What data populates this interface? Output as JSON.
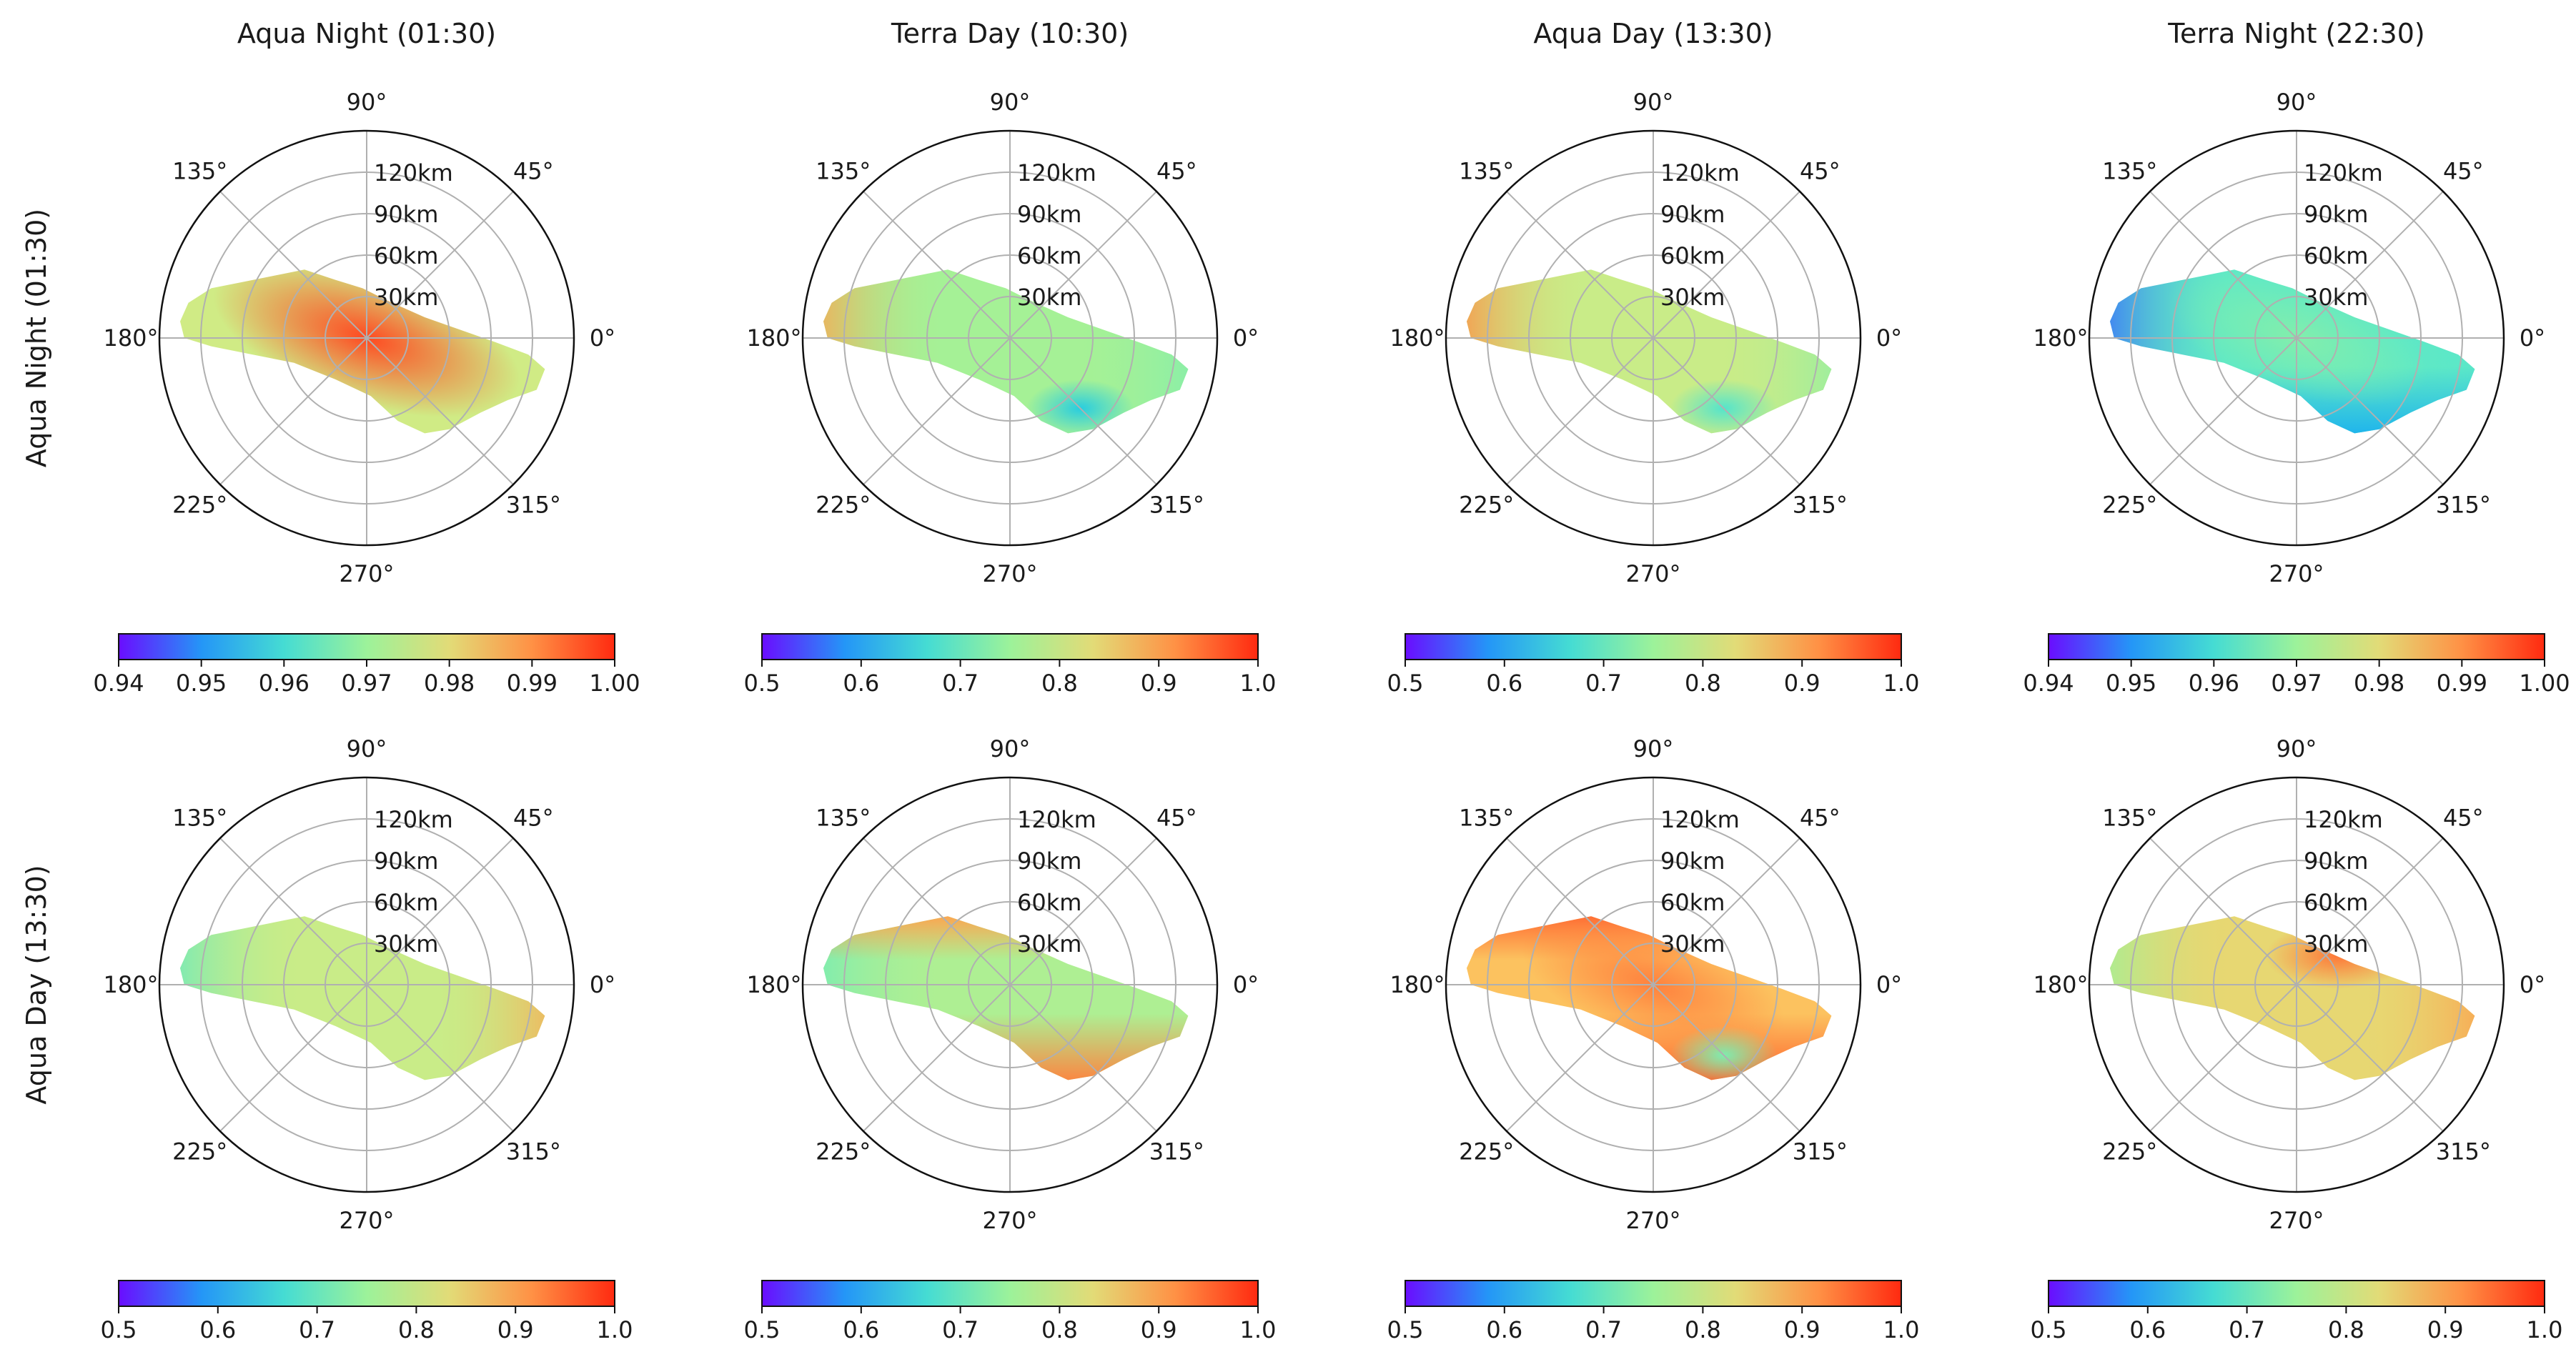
{
  "figure": {
    "column_titles": [
      "Aqua Night (01:30)",
      "Terra Day (10:30)",
      "Aqua Day (13:30)",
      "Terra Night (22:30)"
    ],
    "row_labels": [
      "Aqua Night (01:30)",
      "Aqua Day (13:30)"
    ]
  },
  "colors": {
    "colormap": [
      "#6a0dff",
      "#2b7fff",
      "#17c4e8",
      "#5ce8c8",
      "#9cf29a",
      "#d4ea84",
      "#ffbe5c",
      "#ff7a3a",
      "#ff2a10"
    ],
    "axis_line": "#111111",
    "grid": "#b0b0b0"
  },
  "chart_data": [
    {
      "type": "polar-heatmap",
      "row": 0,
      "col": 0,
      "angle_ticks": [
        "0°",
        "45°",
        "90°",
        "135°",
        "180°",
        "225°",
        "270°",
        "315°"
      ],
      "radial_ticks": [
        "30km",
        "60km",
        "90km",
        "120km"
      ],
      "rlim": [
        0,
        150
      ],
      "colorbar": {
        "vmin": 0.94,
        "vmax": 1.0,
        "ticks": [
          "0.94",
          "0.95",
          "0.96",
          "0.97",
          "0.98",
          "0.99",
          "1.00"
        ]
      },
      "pattern": {
        "base": 0.977,
        "center": 0.997,
        "center_falloff": 0.35,
        "west": 0.0,
        "east": 0.0,
        "north_edge": 0.0,
        "south_edge": 0.0,
        "ne_blob": 0.0,
        "se_patch": 0.0
      }
    },
    {
      "type": "polar-heatmap",
      "row": 0,
      "col": 1,
      "angle_ticks": [
        "0°",
        "45°",
        "90°",
        "135°",
        "180°",
        "225°",
        "270°",
        "315°"
      ],
      "radial_ticks": [
        "30km",
        "60km",
        "90km",
        "120km"
      ],
      "rlim": [
        0,
        150
      ],
      "colorbar": {
        "vmin": 0.5,
        "vmax": 1.0,
        "ticks": [
          "0.5",
          "0.6",
          "0.7",
          "0.8",
          "0.9",
          "1.0"
        ]
      },
      "pattern": {
        "base": 0.76,
        "center": 0.0,
        "center_falloff": 0.3,
        "west": 0.9,
        "east": 0.72,
        "north_edge": 0.0,
        "south_edge": 0.0,
        "ne_blob": 0.0,
        "se_patch": 0.64
      }
    },
    {
      "type": "polar-heatmap",
      "row": 0,
      "col": 2,
      "angle_ticks": [
        "0°",
        "45°",
        "90°",
        "135°",
        "180°",
        "225°",
        "270°",
        "315°"
      ],
      "radial_ticks": [
        "30km",
        "60km",
        "90km",
        "120km"
      ],
      "rlim": [
        0,
        150
      ],
      "colorbar": {
        "vmin": 0.5,
        "vmax": 1.0,
        "ticks": [
          "0.5",
          "0.6",
          "0.7",
          "0.8",
          "0.9",
          "1.0"
        ]
      },
      "pattern": {
        "base": 0.8,
        "center": 0.0,
        "center_falloff": 0.3,
        "west": 0.92,
        "east": 0.73,
        "north_edge": 0.0,
        "south_edge": 0.0,
        "ne_blob": 0.0,
        "se_patch": 0.68
      }
    },
    {
      "type": "polar-heatmap",
      "row": 0,
      "col": 3,
      "angle_ticks": [
        "0°",
        "45°",
        "90°",
        "135°",
        "180°",
        "225°",
        "270°",
        "315°"
      ],
      "radial_ticks": [
        "30km",
        "60km",
        "90km",
        "120km"
      ],
      "rlim": [
        0,
        150
      ],
      "colorbar": {
        "vmin": 0.94,
        "vmax": 1.0,
        "ticks": [
          "0.94",
          "0.95",
          "0.96",
          "0.97",
          "0.98",
          "0.99",
          "1.00"
        ]
      },
      "pattern": {
        "base": 0.963,
        "center": 0.967,
        "center_falloff": 0.3,
        "west": 0.946,
        "east": 0.962,
        "north_edge": 0.0,
        "south_edge": 0.953,
        "ne_blob": 0.0,
        "se_patch": 0.0
      }
    },
    {
      "type": "polar-heatmap",
      "row": 1,
      "col": 0,
      "angle_ticks": [
        "0°",
        "45°",
        "90°",
        "135°",
        "180°",
        "225°",
        "270°",
        "315°"
      ],
      "radial_ticks": [
        "30km",
        "60km",
        "90km",
        "120km"
      ],
      "rlim": [
        0,
        150
      ],
      "colorbar": {
        "vmin": 0.5,
        "vmax": 1.0,
        "ticks": [
          "0.5",
          "0.6",
          "0.7",
          "0.8",
          "0.9",
          "1.0"
        ]
      },
      "pattern": {
        "base": 0.8,
        "center": 0.0,
        "center_falloff": 0.3,
        "west": 0.7,
        "east": 0.9,
        "north_edge": 0.0,
        "south_edge": 0.0,
        "ne_blob": 0.0,
        "se_patch": 0.0
      }
    },
    {
      "type": "polar-heatmap",
      "row": 1,
      "col": 1,
      "angle_ticks": [
        "0°",
        "45°",
        "90°",
        "135°",
        "180°",
        "225°",
        "270°",
        "315°"
      ],
      "radial_ticks": [
        "30km",
        "60km",
        "90km",
        "120km"
      ],
      "rlim": [
        0,
        150
      ],
      "colorbar": {
        "vmin": 0.5,
        "vmax": 1.0,
        "ticks": [
          "0.5",
          "0.6",
          "0.7",
          "0.8",
          "0.9",
          "1.0"
        ]
      },
      "pattern": {
        "base": 0.77,
        "center": 0.0,
        "center_falloff": 0.3,
        "west": 0.71,
        "east": 0.0,
        "north_edge": 0.9,
        "south_edge": 0.93,
        "ne_blob": 0.0,
        "se_patch": 0.0
      }
    },
    {
      "type": "polar-heatmap",
      "row": 1,
      "col": 2,
      "angle_ticks": [
        "0°",
        "45°",
        "90°",
        "135°",
        "180°",
        "225°",
        "270°",
        "315°"
      ],
      "radial_ticks": [
        "30km",
        "60km",
        "90km",
        "120km"
      ],
      "rlim": [
        0,
        150
      ],
      "colorbar": {
        "vmin": 0.5,
        "vmax": 1.0,
        "ticks": [
          "0.5",
          "0.6",
          "0.7",
          "0.8",
          "0.9",
          "1.0"
        ]
      },
      "pattern": {
        "base": 0.87,
        "center": 0.93,
        "center_falloff": 0.3,
        "west": 0.0,
        "east": 0.0,
        "north_edge": 0.95,
        "south_edge": 0.96,
        "ne_blob": 0.0,
        "se_patch": 0.72
      }
    },
    {
      "type": "polar-heatmap",
      "row": 1,
      "col": 3,
      "angle_ticks": [
        "0°",
        "45°",
        "90°",
        "135°",
        "180°",
        "225°",
        "270°",
        "315°"
      ],
      "radial_ticks": [
        "30km",
        "60km",
        "90km",
        "120km"
      ],
      "rlim": [
        0,
        150
      ],
      "colorbar": {
        "vmin": 0.5,
        "vmax": 1.0,
        "ticks": [
          "0.5",
          "0.6",
          "0.7",
          "0.8",
          "0.9",
          "1.0"
        ]
      },
      "pattern": {
        "base": 0.84,
        "center": 0.0,
        "center_falloff": 0.3,
        "west": 0.75,
        "east": 0.91,
        "north_edge": 0.0,
        "south_edge": 0.0,
        "ne_blob": 0.94,
        "se_patch": 0.0
      }
    }
  ]
}
